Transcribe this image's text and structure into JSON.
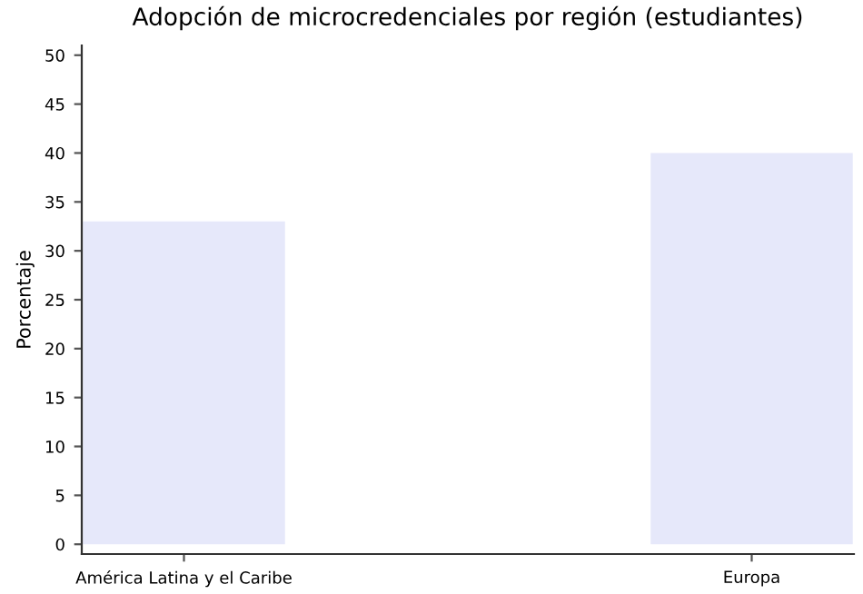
{
  "chart_data": {
    "type": "bar",
    "title": "Adopción de microcredenciales por región (estudiantes)",
    "ylabel": "Porcentaje",
    "categories": [
      "América Latina y el Caribe",
      "Europa"
    ],
    "values": [
      33,
      40
    ],
    "color": "#e6e8fa",
    "ylim": [
      -1,
      51
    ],
    "yticks": [
      0,
      5,
      10,
      15,
      20,
      25,
      30,
      35,
      40,
      45,
      50
    ],
    "grid": false,
    "legend": false
  }
}
